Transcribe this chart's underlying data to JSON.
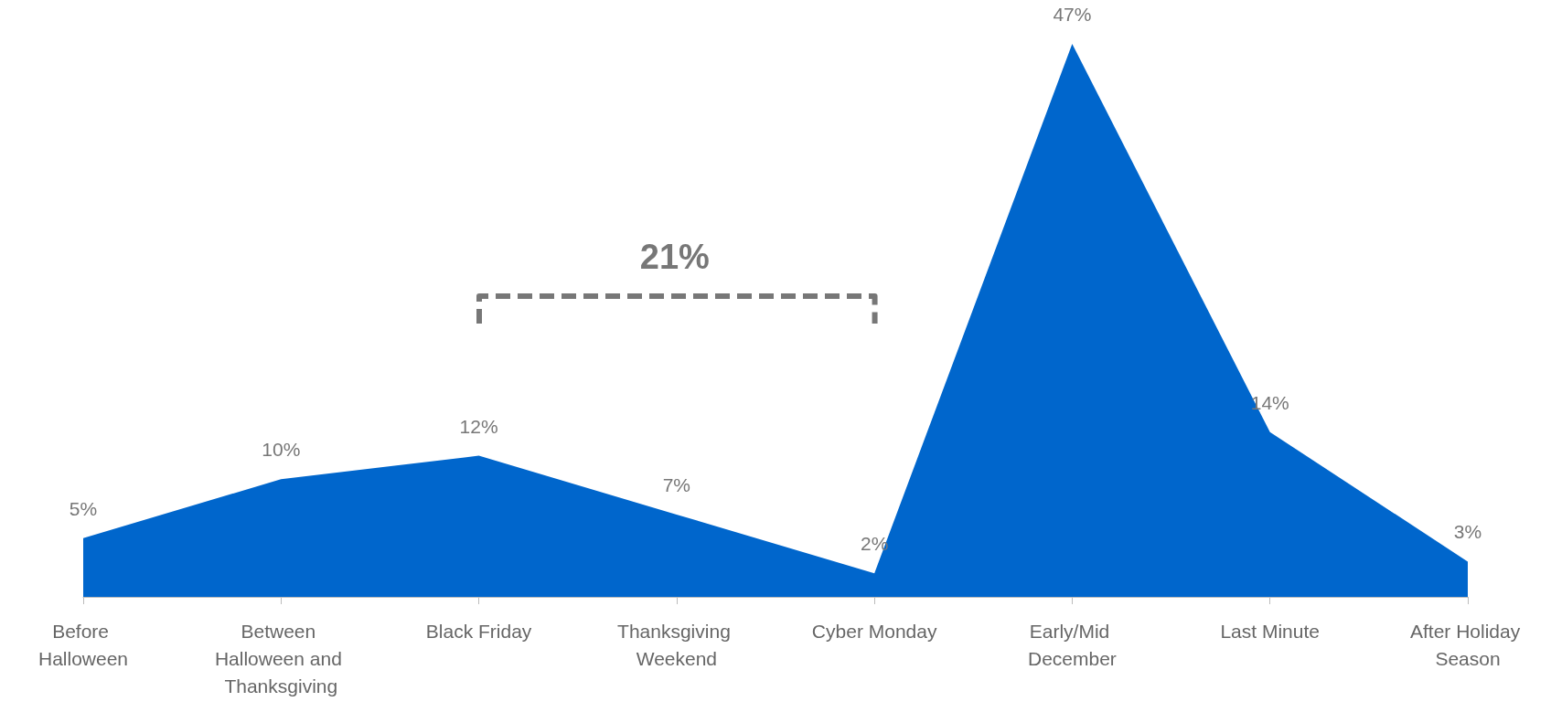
{
  "chart_data": {
    "type": "area",
    "categories": [
      "Before Halloween",
      "Between Halloween and Thanksgiving",
      "Black Friday",
      "Thanksgiving Weekend",
      "Cyber Monday",
      "Early/Mid December",
      "Last Minute",
      "After Holiday Season"
    ],
    "values": [
      5,
      10,
      12,
      7,
      2,
      47,
      14,
      3
    ],
    "value_labels": [
      "5%",
      "10%",
      "12%",
      "7%",
      "2%",
      "47%",
      "14%",
      "3%"
    ],
    "color": "#0066cc",
    "grid": false,
    "annotations": [
      "21%"
    ]
  }
}
